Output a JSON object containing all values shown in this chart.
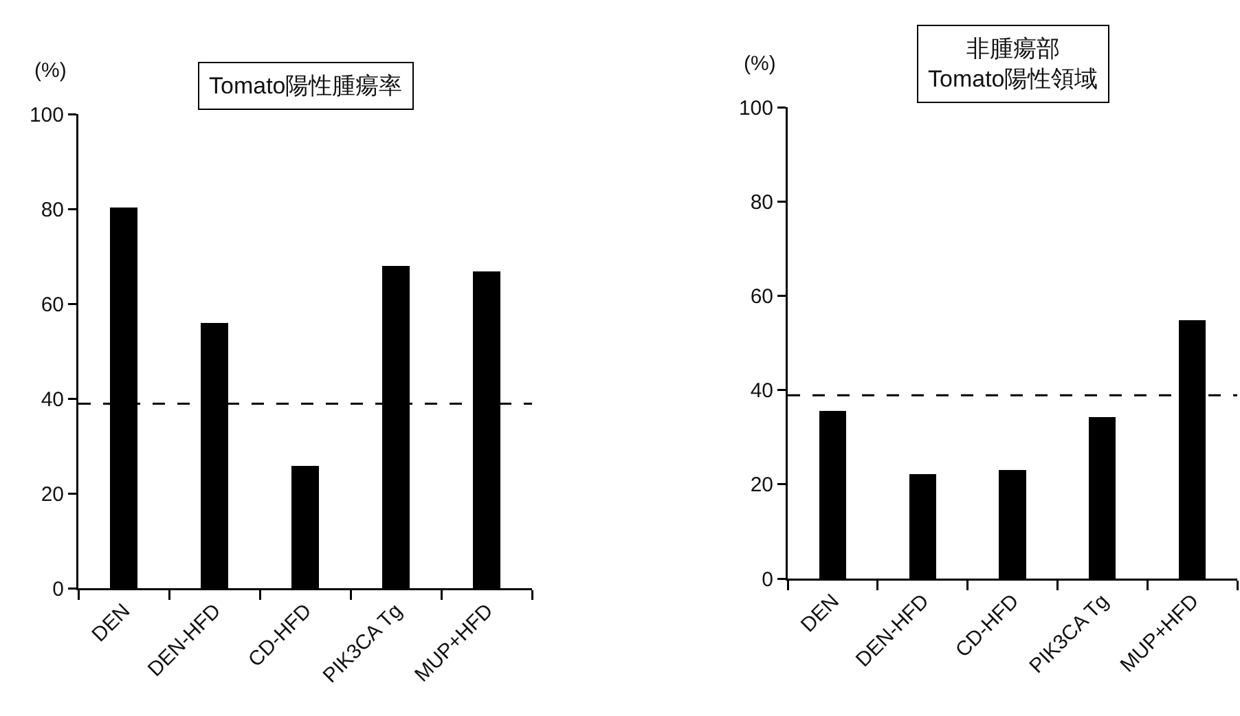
{
  "chart_data": [
    {
      "type": "bar",
      "title": "Tomato陽性腫瘍率",
      "ylabel": "(%)",
      "categories": [
        "DEN",
        "DEN-HFD",
        "CD-HFD",
        "PIK3CA Tg",
        "MUP+HFD"
      ],
      "series": [
        {
          "color": "#000000",
          "values": [
            80.3,
            55.9,
            25.8,
            68,
            66.8
          ]
        }
      ],
      "ylim": [
        0,
        100
      ],
      "yticks": [
        0,
        20,
        40,
        60,
        80,
        100
      ],
      "ref_lines": [
        {
          "axis": "y",
          "value": 38.9,
          "line_style": "dashed",
          "color": "#000000"
        }
      ]
    },
    {
      "type": "bar",
      "title": "非腫瘍部\nTomato陽性領域",
      "ylabel": "(%)",
      "categories": [
        "DEN",
        "DEN-HFD",
        "CD-HFD",
        "PIK3CA Tg",
        "MUP+HFD"
      ],
      "series": [
        {
          "color": "#000000",
          "values": [
            35.5,
            22.1,
            23.0,
            34.3,
            54.8
          ]
        }
      ],
      "ylim": [
        0,
        100
      ],
      "yticks": [
        0,
        20,
        40,
        60,
        80,
        100
      ],
      "ref_lines": [
        {
          "axis": "y",
          "value": 38.9,
          "line_style": "dashed",
          "color": "#000000"
        }
      ]
    }
  ]
}
